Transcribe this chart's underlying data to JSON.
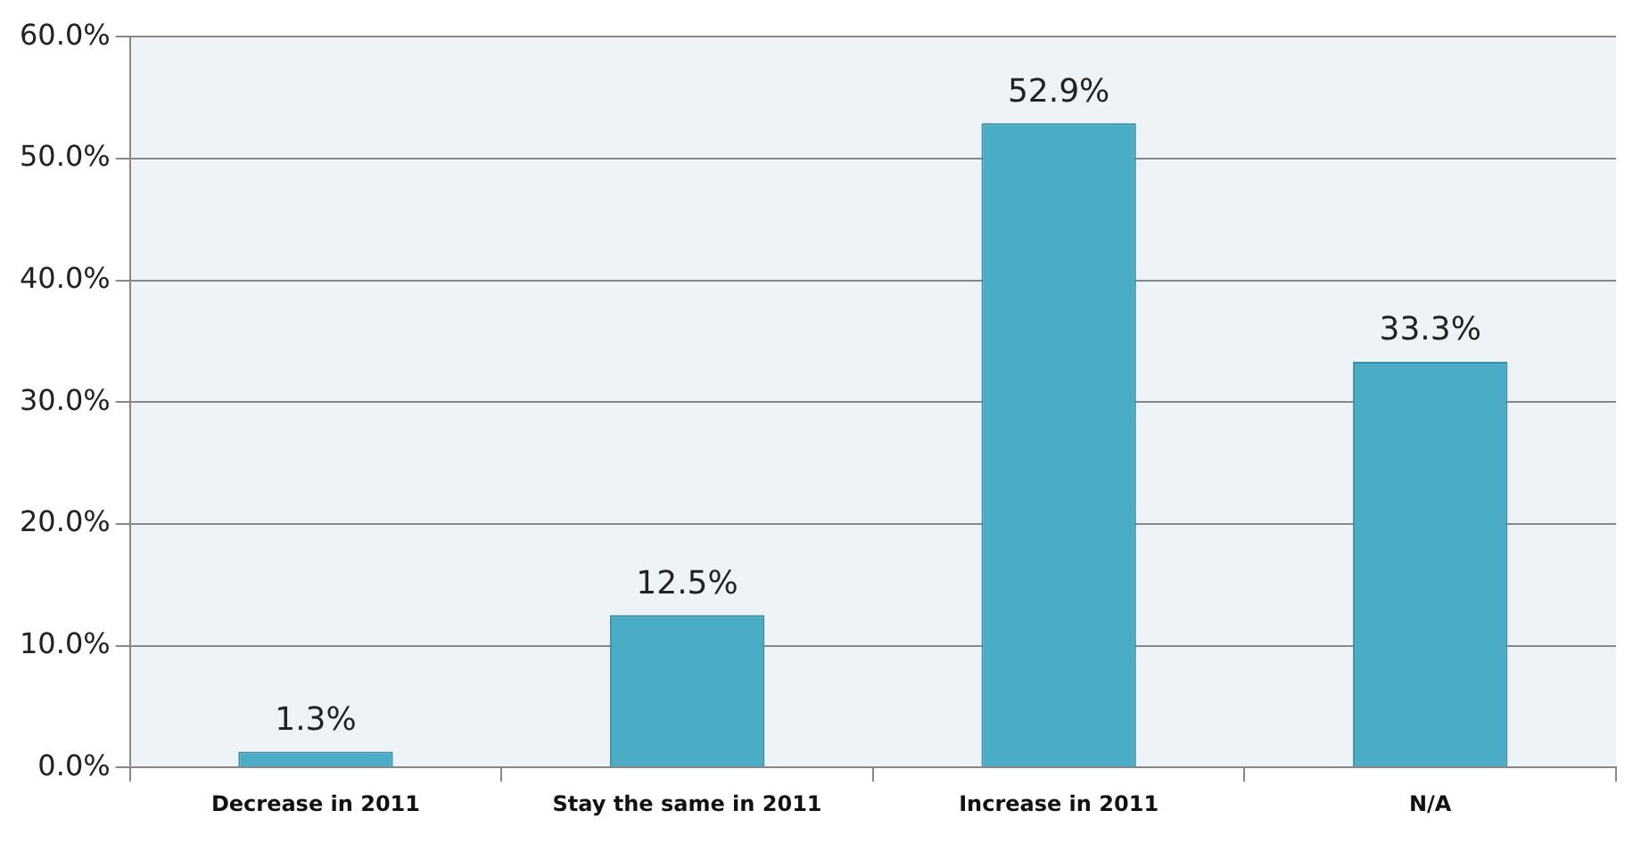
{
  "chart_data": {
    "type": "bar",
    "categories": [
      "Decrease in 2011",
      "Stay the same in 2011",
      "Increase in 2011",
      "N/A"
    ],
    "values": [
      1.3,
      12.5,
      52.9,
      33.3
    ],
    "value_labels": [
      "1.3%",
      "12.5%",
      "52.9%",
      "33.3%"
    ],
    "color": "#4bacc6",
    "ylim": [
      0,
      60
    ],
    "yticks": [
      {
        "value": 0,
        "label": "0.0%"
      },
      {
        "value": 10,
        "label": "10.0%"
      },
      {
        "value": 20,
        "label": "20.0%"
      },
      {
        "value": 30,
        "label": "30.0%"
      },
      {
        "value": 40,
        "label": "40.0%"
      },
      {
        "value": 50,
        "label": "50.0%"
      },
      {
        "value": 60,
        "label": "60.0%"
      }
    ],
    "grid": "y"
  }
}
